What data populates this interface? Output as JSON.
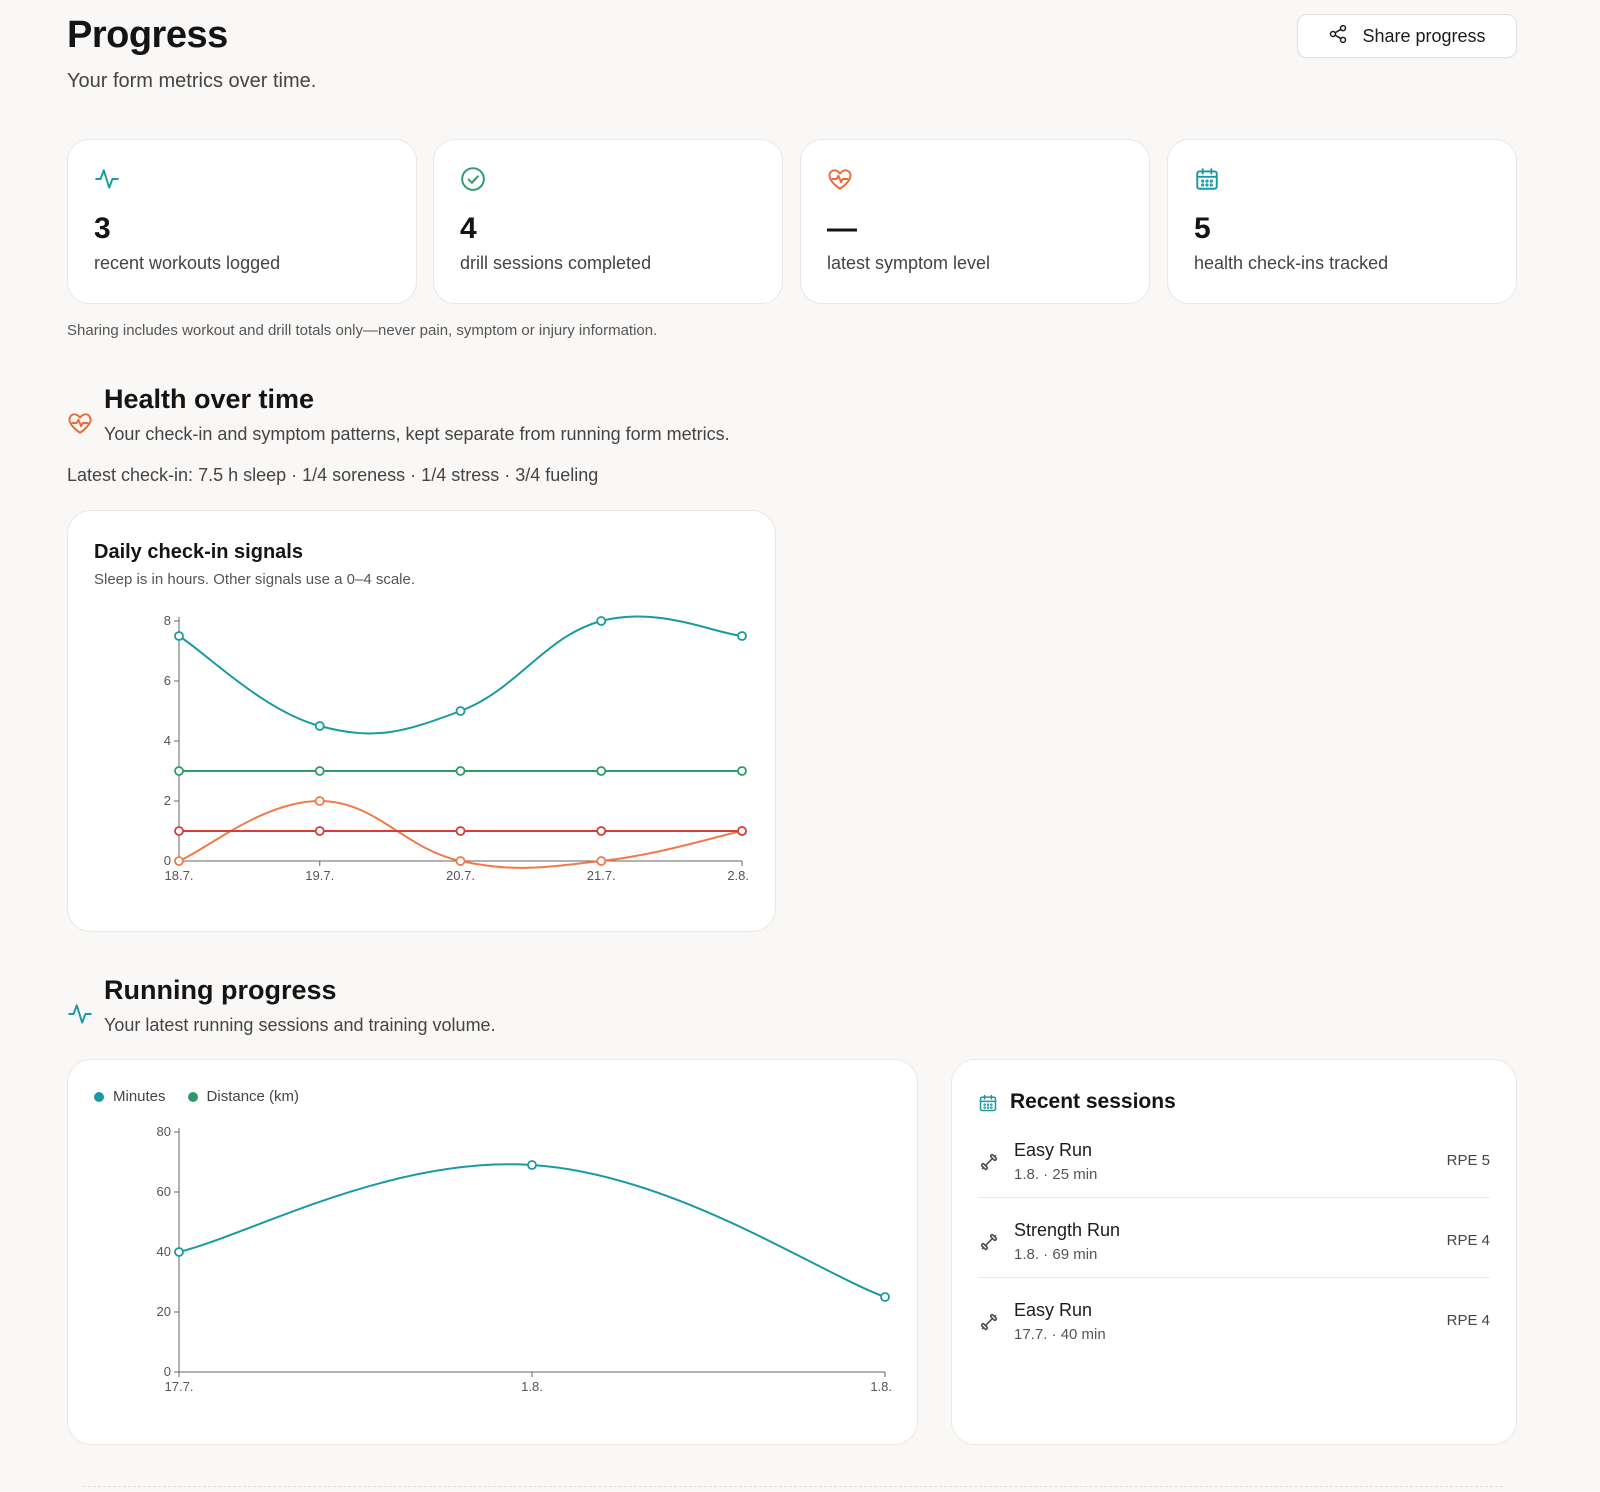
{
  "header": {
    "title": "Progress",
    "subtitle": "Your form metrics over time.",
    "share_label": "Share progress"
  },
  "stats": [
    {
      "icon": "activity-icon",
      "value": "3",
      "label": "recent workouts logged",
      "color": "#1a9aa0"
    },
    {
      "icon": "check-circle-icon",
      "value": "4",
      "label": "drill sessions completed",
      "color": "#2e9a6a"
    },
    {
      "icon": "heart-pulse-icon",
      "value": "—",
      "label": "latest symptom level",
      "color": "#e86a3a"
    },
    {
      "icon": "calendar-icon",
      "value": "5",
      "label": "health check-ins tracked",
      "color": "#1a9aa0"
    }
  ],
  "privacy_note": "Sharing includes workout and drill totals only—never pain, symptom or injury information.",
  "health": {
    "title": "Health over time",
    "subtitle": "Your check-in and symptom patterns, kept separate from running form metrics.",
    "latest_checkin": "Latest check-in: 7.5 h sleep · 1/4 soreness · 1/4 stress · 3/4 fueling",
    "chart": {
      "title": "Daily check-in signals",
      "subtitle": "Sleep is in hours. Other signals use a 0–4 scale."
    }
  },
  "running": {
    "title": "Running progress",
    "subtitle": "Your latest running sessions and training volume.",
    "legend": [
      {
        "label": "Minutes",
        "color": "#1a9aa0"
      },
      {
        "label": "Distance (km)",
        "color": "#2e9a6a"
      }
    ]
  },
  "sessions": {
    "title": "Recent sessions",
    "items": [
      {
        "name": "Easy Run",
        "meta": "1.8. · 25 min",
        "rpe": "RPE 5"
      },
      {
        "name": "Strength Run",
        "meta": "1.8. · 69 min",
        "rpe": "RPE 4"
      },
      {
        "name": "Easy Run",
        "meta": "17.7. · 40 min",
        "rpe": "RPE 4"
      }
    ]
  },
  "chart_data": [
    {
      "type": "line",
      "title": "Daily check-in signals",
      "categories": [
        "18.7.",
        "19.7.",
        "20.7.",
        "21.7.",
        "2.8."
      ],
      "ylim": [
        0,
        8
      ],
      "yticks": [
        0,
        2,
        4,
        6,
        8
      ],
      "grid": false,
      "series": [
        {
          "values": [
            7.5,
            4.5,
            5,
            8,
            7.5
          ],
          "color": "#1a9aa0"
        },
        {
          "values": [
            3,
            3,
            3,
            3,
            3
          ],
          "color": "#2e9a6a"
        },
        {
          "values": [
            0,
            2,
            0,
            0,
            1
          ],
          "color": "#ef7a4a"
        },
        {
          "values": [
            1,
            1,
            1,
            1,
            1
          ],
          "color": "#d93a3a"
        }
      ]
    },
    {
      "type": "line",
      "categories": [
        "17.7.",
        "1.8.",
        "1.8."
      ],
      "ylim": [
        0,
        80
      ],
      "yticks": [
        0,
        20,
        40,
        60,
        80
      ],
      "grid": false,
      "legend": "top-left",
      "series": [
        {
          "name": "Minutes",
          "values": [
            40,
            69,
            25
          ],
          "color": "#1a9aa0"
        }
      ]
    }
  ]
}
